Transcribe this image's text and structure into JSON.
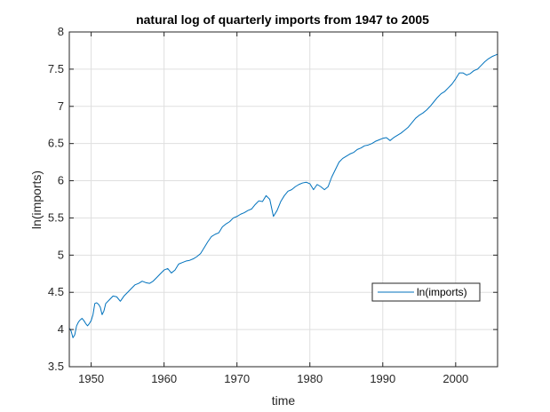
{
  "chart_data": {
    "type": "line",
    "title": "natural log of quarterly imports from 1947 to 2005",
    "xlabel": "time",
    "ylabel": "ln(imports)",
    "xlim": [
      1947,
      2005.75
    ],
    "ylim": [
      3.5,
      8
    ],
    "xticks": [
      1950,
      1960,
      1970,
      1980,
      1990,
      2000
    ],
    "yticks": [
      3.5,
      4,
      4.5,
      5,
      5.5,
      6,
      6.5,
      7,
      7.5,
      8
    ],
    "xtick_labels": [
      "1950",
      "1960",
      "1970",
      "1980",
      "1990",
      "2000"
    ],
    "ytick_labels": [
      "3.5",
      "4",
      "4.5",
      "5",
      "5.5",
      "6",
      "6.5",
      "7",
      "7.5",
      "8"
    ],
    "grid": true,
    "legend": {
      "placement": "lower-right",
      "entries": [
        "ln(imports)"
      ]
    },
    "colors": {
      "series": "#0072BD",
      "axes": "#262626",
      "grid": "#dfdfdf"
    },
    "series": [
      {
        "name": "ln(imports)",
        "x": [
          1947.0,
          1947.25,
          1947.5,
          1947.75,
          1948.0,
          1948.25,
          1948.5,
          1948.75,
          1949.0,
          1949.25,
          1949.5,
          1949.75,
          1950.0,
          1950.25,
          1950.5,
          1950.75,
          1951.0,
          1951.25,
          1951.5,
          1951.75,
          1952.0,
          1952.5,
          1953.0,
          1953.5,
          1954.0,
          1954.5,
          1955.0,
          1955.5,
          1956.0,
          1956.5,
          1957.0,
          1957.5,
          1958.0,
          1958.5,
          1959.0,
          1959.5,
          1960.0,
          1960.5,
          1961.0,
          1961.5,
          1962.0,
          1962.5,
          1963.0,
          1963.5,
          1964.0,
          1964.5,
          1965.0,
          1965.5,
          1966.0,
          1966.5,
          1967.0,
          1967.5,
          1968.0,
          1968.5,
          1969.0,
          1969.5,
          1970.0,
          1970.5,
          1971.0,
          1971.5,
          1972.0,
          1972.5,
          1973.0,
          1973.5,
          1974.0,
          1974.5,
          1975.0,
          1975.5,
          1976.0,
          1976.5,
          1977.0,
          1977.5,
          1978.0,
          1978.5,
          1979.0,
          1979.5,
          1980.0,
          1980.5,
          1981.0,
          1981.5,
          1982.0,
          1982.5,
          1983.0,
          1983.5,
          1984.0,
          1984.5,
          1985.0,
          1985.5,
          1986.0,
          1986.5,
          1987.0,
          1987.5,
          1988.0,
          1988.5,
          1989.0,
          1989.5,
          1990.0,
          1990.5,
          1991.0,
          1991.5,
          1992.0,
          1992.5,
          1993.0,
          1993.5,
          1994.0,
          1994.5,
          1995.0,
          1995.5,
          1996.0,
          1996.5,
          1997.0,
          1997.5,
          1998.0,
          1998.5,
          1999.0,
          1999.5,
          2000.0,
          2000.5,
          2001.0,
          2001.5,
          2002.0,
          2002.5,
          2003.0,
          2003.5,
          2004.0,
          2004.5,
          2005.0,
          2005.5,
          2005.75
        ],
        "y": [
          4.02,
          3.98,
          3.89,
          3.93,
          4.05,
          4.1,
          4.13,
          4.15,
          4.12,
          4.08,
          4.05,
          4.08,
          4.12,
          4.2,
          4.35,
          4.36,
          4.34,
          4.3,
          4.2,
          4.25,
          4.35,
          4.4,
          4.45,
          4.44,
          4.38,
          4.45,
          4.5,
          4.55,
          4.6,
          4.62,
          4.65,
          4.63,
          4.62,
          4.65,
          4.7,
          4.75,
          4.8,
          4.82,
          4.76,
          4.8,
          4.88,
          4.9,
          4.92,
          4.93,
          4.95,
          4.98,
          5.02,
          5.1,
          5.18,
          5.25,
          5.28,
          5.3,
          5.38,
          5.42,
          5.45,
          5.5,
          5.52,
          5.55,
          5.57,
          5.6,
          5.62,
          5.68,
          5.73,
          5.72,
          5.8,
          5.75,
          5.52,
          5.6,
          5.72,
          5.8,
          5.86,
          5.88,
          5.92,
          5.95,
          5.97,
          5.98,
          5.96,
          5.88,
          5.95,
          5.92,
          5.88,
          5.92,
          6.05,
          6.15,
          6.25,
          6.3,
          6.33,
          6.36,
          6.38,
          6.42,
          6.44,
          6.47,
          6.48,
          6.5,
          6.53,
          6.55,
          6.57,
          6.58,
          6.54,
          6.58,
          6.61,
          6.64,
          6.68,
          6.72,
          6.78,
          6.84,
          6.88,
          6.91,
          6.95,
          7.0,
          7.06,
          7.12,
          7.17,
          7.2,
          7.25,
          7.3,
          7.37,
          7.45,
          7.45,
          7.42,
          7.44,
          7.48,
          7.5,
          7.55,
          7.6,
          7.64,
          7.67,
          7.69,
          7.7
        ]
      }
    ]
  }
}
